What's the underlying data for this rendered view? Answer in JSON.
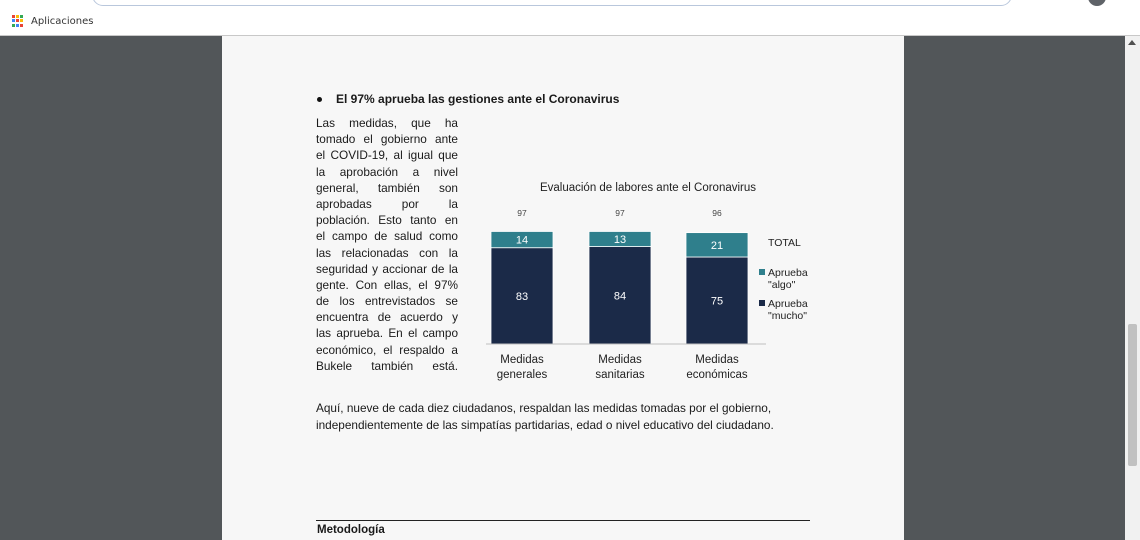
{
  "browser": {
    "bookmarks_label": "Aplicaciones",
    "apps_icon_colors": [
      "#e94335",
      "#fbbc05",
      "#34a853",
      "#4285f4",
      "#e94335",
      "#fbbc05",
      "#34a853",
      "#4285f4",
      "#e94335"
    ]
  },
  "document": {
    "heading": "El 97% aprueba las gestiones ante el Coronavirus",
    "column_lines": [
      "Las medidas, que ha",
      "tomado el gobierno ante",
      "el COVID-19, al igual que",
      "la aprobación a nivel",
      "general, también son",
      "aprobadas por la",
      "población. Esto tanto en",
      "el campo de salud como",
      "las relacionadas con la",
      "seguridad y accionar de la",
      "gente. Con ellas, el 97%",
      "de los entrevistados se",
      "encuentra de acuerdo y",
      "las aprueba. En el campo",
      "económico, el respaldo a",
      "Bukele también está."
    ],
    "full_lines": [
      "Aquí, nueve de cada diez ciudadanos, respaldan las medidas tomadas por el gobierno,",
      "independientemente de las simpatías partidarias, edad o nivel educativo del ciudadano."
    ],
    "section_title": "Metodología"
  },
  "chart_data": {
    "type": "bar",
    "stacked": true,
    "title": "Evaluación de labores ante el Coronavirus",
    "categories": [
      "Medidas generales",
      "Medidas sanitarias",
      "Medidas económicas"
    ],
    "category_lines": [
      [
        "Medidas",
        "generales"
      ],
      [
        "Medidas",
        "sanitarias"
      ],
      [
        "Medidas",
        "económicas"
      ]
    ],
    "totals": [
      97,
      97,
      96
    ],
    "total_label": "TOTAL",
    "series": [
      {
        "name": "Aprueba \"mucho\"",
        "legend_lines": [
          "Aprueba",
          "\"mucho\""
        ],
        "values": [
          83,
          84,
          75
        ],
        "color": "#1b2a48"
      },
      {
        "name": "Aprueba \"algo\"",
        "legend_lines": [
          "Aprueba",
          "\"algo\""
        ],
        "values": [
          14,
          13,
          21
        ],
        "color": "#2f7f8c"
      }
    ],
    "ylim": [
      0,
      100
    ],
    "legend_position": "right"
  }
}
